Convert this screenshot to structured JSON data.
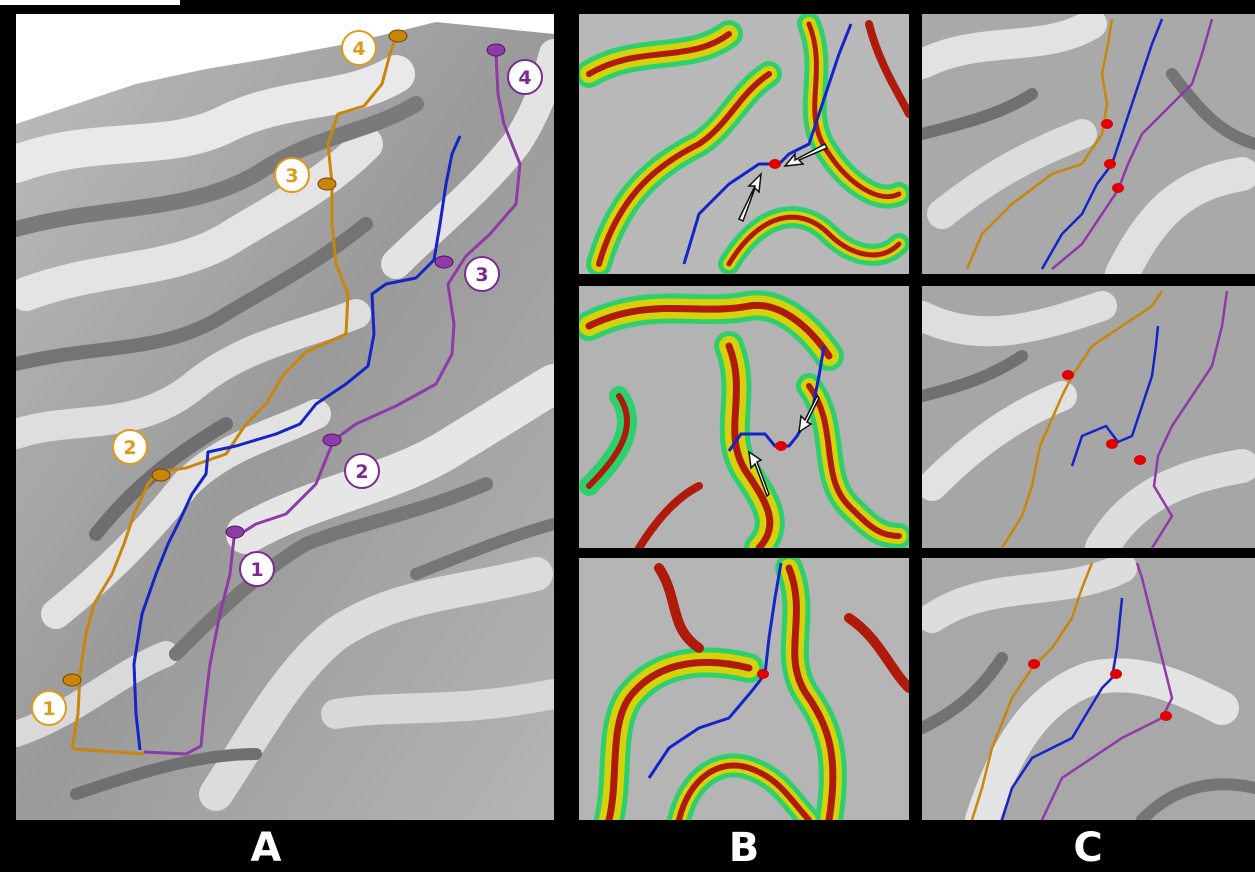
{
  "panel_labels": {
    "a": "A",
    "b": "B",
    "c": "C"
  },
  "markers": {
    "orange": [
      "1",
      "2",
      "3",
      "4"
    ],
    "purple": [
      "1",
      "2",
      "3",
      "4"
    ]
  },
  "colors": {
    "background": "#000000",
    "cortex_light": "#e6e6e6",
    "cortex_dark": "#6e6e6e",
    "line_orange": "#c8860a",
    "line_purple": "#8e3aa8",
    "line_blue": "#1424c8",
    "point_red": "#e00000",
    "heat_red": "#b01a0a",
    "heat_yellow": "#d6d20a",
    "heat_green": "#2ed06e"
  },
  "icons": [
    "arrow-icon"
  ]
}
